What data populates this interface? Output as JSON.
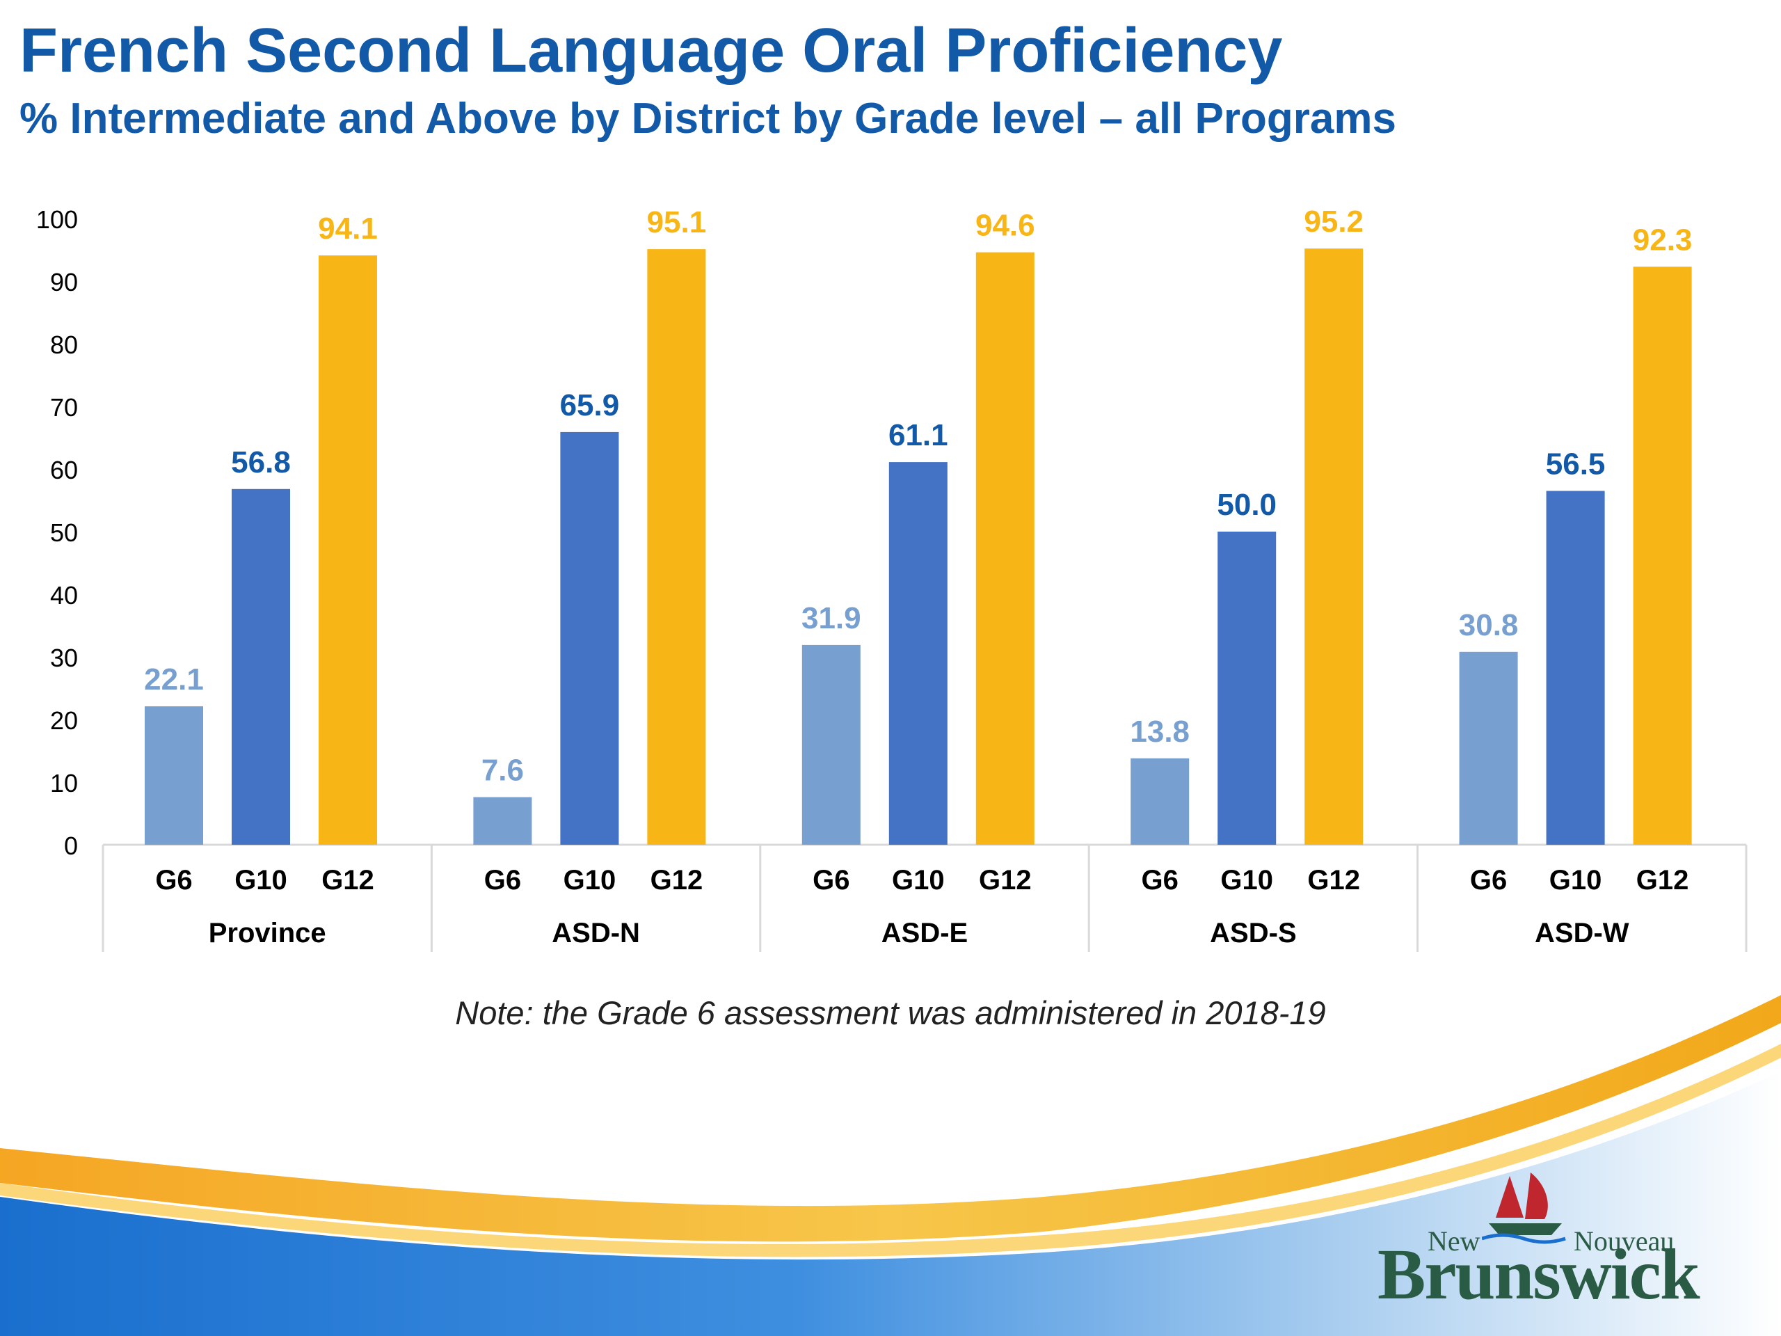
{
  "title": "French Second Language Oral Proficiency",
  "subtitle": "% Intermediate and Above by District by Grade level – all Programs",
  "note": "Note: the Grade 6 assessment was administered in 2018-19",
  "logo": {
    "top_left": "New",
    "top_right": "Nouveau",
    "main": "Brunswick"
  },
  "colors": {
    "title": "#1259a8",
    "g6": "#779fd0",
    "g10": "#4472c4",
    "g12": "#f8b516",
    "axis": "#d9d9d9",
    "gold": "#f7b51e",
    "blue_band": "#1a6fce"
  },
  "chart_data": {
    "type": "bar",
    "y_ticks": [
      "0",
      "10",
      "20",
      "30",
      "40",
      "50",
      "60",
      "70",
      "80",
      "90",
      "100"
    ],
    "ylim": [
      0,
      100
    ],
    "grid": false,
    "legend": "none",
    "groups": [
      {
        "name": "Province",
        "bars": [
          {
            "label": "G6",
            "value": 22.1,
            "text": "22.1"
          },
          {
            "label": "G10",
            "value": 56.8,
            "text": "56.8"
          },
          {
            "label": "G12",
            "value": 94.1,
            "text": "94.1"
          }
        ]
      },
      {
        "name": "ASD-N",
        "bars": [
          {
            "label": "G6",
            "value": 7.6,
            "text": "7.6"
          },
          {
            "label": "G10",
            "value": 65.9,
            "text": "65.9"
          },
          {
            "label": "G12",
            "value": 95.1,
            "text": "95.1"
          }
        ]
      },
      {
        "name": "ASD-E",
        "bars": [
          {
            "label": "G6",
            "value": 31.9,
            "text": "31.9"
          },
          {
            "label": "G10",
            "value": 61.1,
            "text": "61.1"
          },
          {
            "label": "G12",
            "value": 94.6,
            "text": "94.6"
          }
        ]
      },
      {
        "name": "ASD-S",
        "bars": [
          {
            "label": "G6",
            "value": 13.8,
            "text": "13.8"
          },
          {
            "label": "G10",
            "value": 50.0,
            "text": "50.0"
          },
          {
            "label": "G12",
            "value": 95.2,
            "text": "95.2"
          }
        ]
      },
      {
        "name": "ASD-W",
        "bars": [
          {
            "label": "G6",
            "value": 30.8,
            "text": "30.8"
          },
          {
            "label": "G10",
            "value": 56.5,
            "text": "56.5"
          },
          {
            "label": "G12",
            "value": 92.3,
            "text": "92.3"
          }
        ]
      }
    ]
  }
}
